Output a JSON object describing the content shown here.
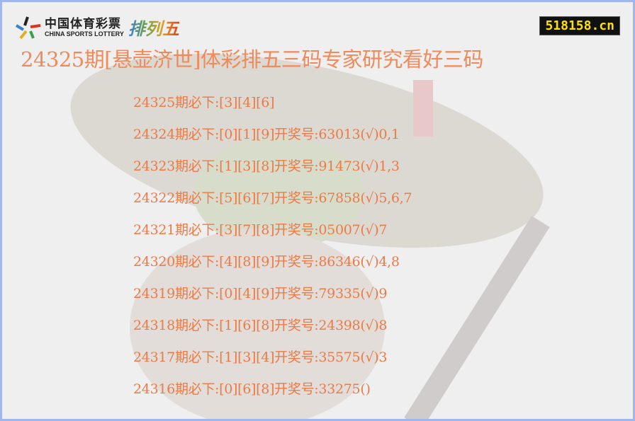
{
  "logo": {
    "cn": "中国体育彩票",
    "en": "CHINA SPORTS LOTTERY",
    "game": "排列五"
  },
  "site_badge": "518158.cn",
  "title": "24325期[悬壶济世]体彩排五三码专家研究看好三码",
  "rows": [
    "24325期必下:[3][4][6]",
    "24324期必下:[0][1][9]开奖号:63013(√)0,1",
    "24323期必下:[1][3][8]开奖号:91473(√)1,3",
    "24322期必下:[5][6][7]开奖号:67858(√)5,6,7",
    "24321期必下:[3][7][8]开奖号:05007(√)7",
    "24320期必下:[4][8][9]开奖号:86346(√)4,8",
    "24319期必下:[0][4][9]开奖号:79335(√)9",
    "24318期必下:[1][6][8]开奖号:24398(√)8",
    "24317期必下:[1][3][4]开奖号:35575(√)3",
    "24316期必下:[0][6][8]开奖号:33275()"
  ],
  "colors": {
    "text": "#ee7a45",
    "title": "#f08a5a",
    "border": "#9fb7ee",
    "badge_text": "#ffe000"
  }
}
